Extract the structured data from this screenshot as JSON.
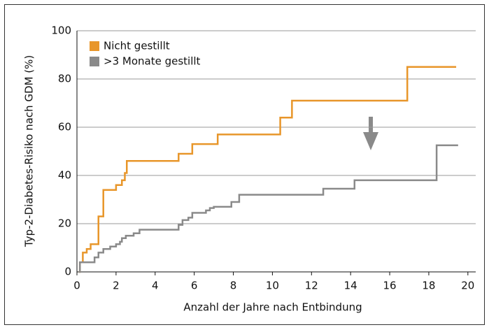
{
  "chart_data": {
    "type": "step",
    "xlabel": "Anzahl der Jahre nach Entbindung",
    "ylabel": "Typ-2-Diabetes-Risiko nach GDM (%)",
    "xlim": [
      0,
      20.4
    ],
    "ylim": [
      0,
      100
    ],
    "xticks": [
      0,
      2,
      4,
      6,
      8,
      10,
      12,
      14,
      16,
      18,
      20
    ],
    "yticks": [
      0,
      20,
      40,
      60,
      80,
      100
    ],
    "grid": true,
    "legend": "upper left",
    "series": [
      {
        "name": "Nicht gestillt",
        "color": "#e8962a",
        "x": [
          0.1,
          0.15,
          0.3,
          0.5,
          0.7,
          1.1,
          1.35,
          2.0,
          2.3,
          2.45,
          2.55,
          5.2,
          5.9,
          7.2,
          10.4,
          11.0,
          16.9,
          19.4
        ],
        "values": [
          0,
          4,
          8,
          9.5,
          11.5,
          23,
          34,
          36,
          38,
          41,
          46,
          49,
          53,
          57,
          64,
          71,
          85,
          85
        ]
      },
      {
        "name": ">3 Monate gestillt",
        "color": "#8a8a8a",
        "x": [
          0.1,
          0.15,
          0.9,
          1.1,
          1.35,
          1.7,
          2.0,
          2.2,
          2.3,
          2.5,
          2.9,
          3.2,
          5.2,
          5.4,
          5.7,
          5.9,
          6.6,
          6.8,
          7.0,
          7.9,
          8.3,
          12.6,
          14.2,
          18.4,
          19.5
        ],
        "values": [
          0,
          4,
          6,
          8,
          9.5,
          10.5,
          11.5,
          12.5,
          14,
          15,
          16,
          17.5,
          19.5,
          21.5,
          22.5,
          24.5,
          25.5,
          26.5,
          27,
          29,
          32,
          34.5,
          38,
          52.5,
          52.5
        ]
      }
    ]
  }
}
